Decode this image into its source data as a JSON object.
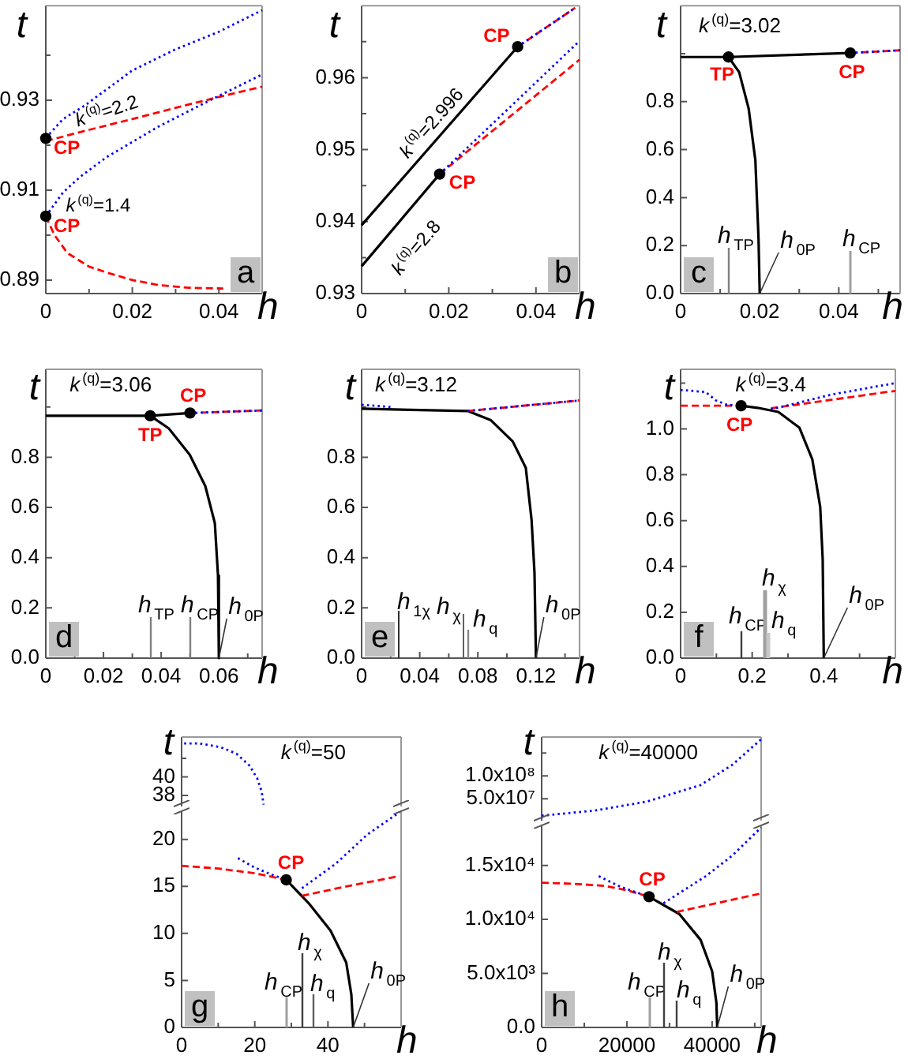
{
  "chart_data": [
    {
      "type": "line",
      "title": "a",
      "xlabel": "h",
      "ylabel": "t",
      "xlim": [
        0,
        0.05
      ],
      "ylim": [
        0.887,
        0.951
      ],
      "xticks": [
        0,
        {
          "value": 0.01,
          "label": null
        },
        0.02,
        {
          "value": 0.03,
          "label": null
        },
        0.04
      ],
      "yticks": [
        0.89,
        {
          "value": 0.9,
          "label": null
        },
        0.91,
        {
          "value": 0.92,
          "label": null
        },
        0.93,
        {
          "value": 0.94,
          "label": null
        }
      ],
      "series": [
        {
          "type": "line",
          "color": "#0000ff",
          "line_style": "dotted",
          "marker": "none",
          "x": [
            0,
            0.004,
            0.009,
            0.02,
            0.03,
            0.04,
            0.05
          ],
          "values": [
            0.9216,
            0.9258,
            0.9288,
            0.9366,
            0.9413,
            0.9452,
            0.95
          ]
        },
        {
          "type": "line",
          "color": "#ff0000",
          "line_style": "dashed",
          "marker": "none",
          "x": [
            0,
            0.01,
            0.02,
            0.03,
            0.04,
            0.05
          ],
          "values": [
            0.9209,
            0.9234,
            0.9258,
            0.9283,
            0.9307,
            0.933
          ]
        },
        {
          "type": "line",
          "color": "#0000ff",
          "line_style": "dotted",
          "marker": "none",
          "x": [
            0,
            0.004,
            0.008,
            0.014,
            0.026,
            0.038,
            0.05
          ],
          "values": [
            0.9042,
            0.9095,
            0.913,
            0.9173,
            0.9241,
            0.93,
            0.9357
          ]
        },
        {
          "type": "line",
          "color": "#ff0000",
          "line_style": "dashed",
          "marker": "none",
          "x": [
            0,
            0.002,
            0.005,
            0.01,
            0.014,
            0.02,
            0.026,
            0.033,
            0.041
          ],
          "values": [
            0.9042,
            0.9,
            0.896,
            0.893,
            0.8917,
            0.89,
            0.8889,
            0.8883,
            0.8881
          ]
        },
        {
          "type": "scatter",
          "color": "#000000",
          "marker": "circle",
          "x": [
            0,
            0
          ],
          "values": [
            0.9215,
            0.9042
          ]
        }
      ],
      "annotations": [
        "k$^{(q)}$=2.2",
        "k$^{(q)}$=1.4",
        {
          "text": "CP",
          "x": 0,
          "y": 0.9215
        },
        {
          "text": "CP",
          "x": 0,
          "y": 0.9042
        }
      ]
    },
    {
      "type": "line",
      "title": "b",
      "xlabel": "h",
      "ylabel": "t",
      "xlim": [
        0,
        0.05
      ],
      "ylim": [
        0.93,
        0.97
      ],
      "xticks": [
        0,
        {
          "value": 0.01,
          "label": null
        },
        0.02,
        {
          "value": 0.03,
          "label": null
        },
        0.04
      ],
      "yticks": [
        0.93,
        {
          "value": 0.935,
          "label": null
        },
        0.94,
        {
          "value": 0.945,
          "label": null
        },
        0.95,
        {
          "value": 0.955,
          "label": null
        },
        0.96,
        {
          "value": 0.965,
          "label": null
        }
      ],
      "series": [
        {
          "type": "line",
          "color": "#000000",
          "line_style": "solid",
          "marker": "none",
          "x": [
            0,
            0.0358
          ],
          "values": [
            0.9395,
            0.9643
          ]
        },
        {
          "type": "line",
          "color": "#0000ff",
          "line_style": "dotted",
          "marker": "none",
          "x": [
            0.0358,
            0.049
          ],
          "values": [
            0.9643,
            0.9697
          ]
        },
        {
          "type": "line",
          "color": "#ff0000",
          "line_style": "dashed",
          "marker": "none",
          "x": [
            0.0358,
            0.049
          ],
          "values": [
            0.9643,
            0.9697
          ]
        },
        {
          "type": "line",
          "color": "#000000",
          "line_style": "solid",
          "marker": "none",
          "x": [
            0,
            0.0179
          ],
          "values": [
            0.9338,
            0.9466
          ]
        },
        {
          "type": "line",
          "color": "#0000ff",
          "line_style": "dotted",
          "marker": "none",
          "x": [
            0.0179,
            0.05
          ],
          "values": [
            0.9466,
            0.9651
          ]
        },
        {
          "type": "line",
          "color": "#ff0000",
          "line_style": "dashed",
          "marker": "none",
          "x": [
            0.0179,
            0.05
          ],
          "values": [
            0.9466,
            0.9625
          ]
        },
        {
          "type": "scatter",
          "color": "#000000",
          "marker": "circle",
          "x": [
            0.0358,
            0.0179
          ],
          "values": [
            0.9643,
            0.9466
          ]
        }
      ],
      "annotations": [
        "k$^{(q)}$=2.996",
        "k$^{(q)}$=2.8",
        {
          "text": "CP",
          "x": 0.0358,
          "y": 0.9643
        },
        {
          "text": "CP",
          "x": 0.0179,
          "y": 0.9466
        }
      ]
    },
    {
      "type": "line",
      "title": "c",
      "subtitle": "k$^{(q)}$=3.02",
      "xlabel": "h",
      "ylabel": "t",
      "xlim": [
        0,
        0.0555
      ],
      "ylim": [
        0,
        1.2
      ],
      "xticks": [
        0,
        {
          "value": 0.01,
          "label": null
        },
        0.02,
        {
          "value": 0.03,
          "label": null
        },
        0.04,
        {
          "value": 0.05,
          "label": null
        }
      ],
      "yticks": [
        {
          "value": 0,
          "label": "0.0"
        },
        0.2,
        0.4,
        0.6,
        0.8,
        {
          "value": 1,
          "label": null
        }
      ],
      "series": [
        {
          "type": "line",
          "color": "#000000",
          "line_style": "solid",
          "marker": "none",
          "x": [
            0,
            0.0121,
            0.0429
          ],
          "values": [
            0.986,
            0.986,
            1.003
          ]
        },
        {
          "type": "line",
          "color": "#000000",
          "line_style": "solid",
          "marker": "none",
          "x": [
            0.0121,
            0.0148,
            0.0172,
            0.0189,
            0.0197,
            0.02
          ],
          "values": [
            0.986,
            0.923,
            0.772,
            0.556,
            0.231,
            0
          ]
        },
        {
          "type": "line",
          "color": "#0000ff",
          "line_style": "dotted",
          "marker": "none",
          "x": [
            0.0429,
            0.0555
          ],
          "values": [
            1.003,
            1.014
          ]
        },
        {
          "type": "line",
          "color": "#ff0000",
          "line_style": "dashed",
          "marker": "none",
          "x": [
            0.0429,
            0.0555
          ],
          "values": [
            1.003,
            1.014
          ]
        },
        {
          "type": "scatter",
          "color": "#000000",
          "marker": "circle",
          "x": [
            0.0121,
            0.0429
          ],
          "values": [
            0.986,
            1.003
          ]
        }
      ],
      "ref_lines": [
        {
          "axis": "x",
          "value": 0.0121,
          "label": "h$_{TP}$",
          "color": "#808080"
        },
        {
          "axis": "x",
          "value": 0.0429,
          "label": "h$_{CP}$",
          "color": "#a0a0a0"
        }
      ],
      "annotations": [
        {
          "text": "TP",
          "x": 0.0121,
          "y": 0.986
        },
        {
          "text": "CP",
          "x": 0.0429,
          "y": 1.003
        },
        {
          "text": "h$_{0P}$",
          "x": 0.02,
          "y": 0
        }
      ]
    },
    {
      "type": "line",
      "title": "d",
      "subtitle": "k$^{(q)}$=3.06",
      "xlabel": "h",
      "ylabel": "t",
      "xlim": [
        0,
        0.075
      ],
      "ylim": [
        0,
        1.15
      ],
      "xticks": [
        0,
        {
          "value": 0.01,
          "label": null
        },
        0.02,
        {
          "value": 0.03,
          "label": null
        },
        0.04,
        {
          "value": 0.05,
          "label": null
        },
        0.06,
        {
          "value": 0.07,
          "label": null
        }
      ],
      "yticks": [
        {
          "value": 0,
          "label": "0.0"
        },
        0.2,
        0.4,
        0.6,
        0.8,
        {
          "value": 1,
          "label": null
        }
      ],
      "series": [
        {
          "type": "line",
          "color": "#000000",
          "line_style": "solid",
          "marker": "none",
          "x": [
            0,
            0.0362,
            0.05
          ],
          "values": [
            0.965,
            0.965,
            0.976
          ]
        },
        {
          "type": "line",
          "color": "#000000",
          "line_style": "solid",
          "marker": "none",
          "x": [
            0.0362,
            0.0426,
            0.0499,
            0.0553,
            0.0586,
            0.0597,
            0.06
          ],
          "values": [
            0.965,
            0.915,
            0.81,
            0.685,
            0.538,
            0.329,
            0
          ]
        },
        {
          "type": "line",
          "color": "#0000ff",
          "line_style": "dotted",
          "marker": "none",
          "x": [
            0.05,
            0.075
          ],
          "values": [
            0.976,
            0.986
          ]
        },
        {
          "type": "line",
          "color": "#ff0000",
          "line_style": "dashed",
          "marker": "none",
          "x": [
            0.05,
            0.075
          ],
          "values": [
            0.976,
            0.986
          ]
        },
        {
          "type": "scatter",
          "color": "#000000",
          "marker": "circle",
          "x": [
            0.0362,
            0.05
          ],
          "values": [
            0.965,
            0.976
          ]
        }
      ],
      "ref_lines": [
        {
          "axis": "x",
          "value": 0.0362,
          "label": "h$_{TP}$",
          "color": "#808080"
        },
        {
          "axis": "x",
          "value": 0.05,
          "label": "h$_{CP}$",
          "color": "#808080"
        }
      ],
      "annotations": [
        {
          "text": "CP",
          "x": 0.05,
          "y": 0.976
        },
        {
          "text": "TP",
          "x": 0.0362,
          "y": 0.965
        },
        {
          "text": "h$_{0P}$",
          "x": 0.06,
          "y": 0
        }
      ]
    },
    {
      "type": "line",
      "title": "e",
      "subtitle": "k$^{(q)}$=3.12",
      "xlabel": "h",
      "ylabel": "t",
      "xlim": [
        0,
        0.15
      ],
      "ylim": [
        0,
        1.15
      ],
      "xticks": [
        0,
        {
          "value": 0.02,
          "label": null
        },
        0.04,
        {
          "value": 0.06,
          "label": null
        },
        0.08,
        {
          "value": 0.1,
          "label": null
        },
        0.12,
        {
          "value": 0.14,
          "label": null
        }
      ],
      "yticks": [
        {
          "value": 0,
          "label": "0.0"
        },
        0.2,
        0.4,
        0.6,
        0.8,
        {
          "value": 1,
          "label": null
        }
      ],
      "series": [
        {
          "type": "line",
          "color": "#0000ff",
          "line_style": "dotted",
          "marker": "none",
          "x": [
            0,
            0.022
          ],
          "values": [
            1.009,
            0.999
          ]
        },
        {
          "type": "line",
          "color": "#000000",
          "line_style": "solid",
          "marker": "none",
          "x": [
            0,
            0.073,
            0.089,
            0.104,
            0.113,
            0.117,
            0.119,
            0.12
          ],
          "values": [
            0.993,
            0.984,
            0.947,
            0.863,
            0.758,
            0.549,
            0.339,
            0
          ]
        },
        {
          "type": "line",
          "color": "#0000ff",
          "line_style": "dotted",
          "marker": "none",
          "x": [
            0.073,
            0.15
          ],
          "values": [
            0.984,
            1.026
          ]
        },
        {
          "type": "line",
          "color": "#ff0000",
          "line_style": "dashed",
          "marker": "none",
          "x": [
            0.073,
            0.15
          ],
          "values": [
            0.984,
            1.026
          ]
        }
      ],
      "ref_lines": [
        {
          "axis": "x",
          "value": 0.025,
          "label": "h$_{1χ}$",
          "color": "#303030"
        },
        {
          "axis": "x",
          "value": 0.07,
          "label": "h$_{χ}$",
          "color": "#606060"
        },
        {
          "axis": "x",
          "value": 0.073,
          "label": "h$_{q}$",
          "color": "#888888"
        }
      ],
      "annotations": [
        {
          "text": "h$_{0P}$",
          "x": 0.12,
          "y": 0
        }
      ]
    },
    {
      "type": "line",
      "title": "f",
      "subtitle": "k$^{(q)}$=3.4",
      "xlabel": "h",
      "ylabel": "t",
      "xlim": [
        0,
        0.6
      ],
      "ylim": [
        0,
        1.26
      ],
      "xticks": [
        0,
        {
          "value": 0.1,
          "label": null
        },
        0.2,
        {
          "value": 0.3,
          "label": null
        },
        0.4,
        {
          "value": 0.5,
          "label": null
        }
      ],
      "yticks": [
        {
          "value": 0,
          "label": "0.0"
        },
        0.2,
        0.4,
        0.6,
        0.8,
        {
          "value": 1,
          "label": "1.0"
        },
        {
          "value": 1.2,
          "label": null
        }
      ],
      "series": [
        {
          "type": "line",
          "color": "#000000",
          "line_style": "solid",
          "marker": "none",
          "x": [
            0.169,
            0.215,
            0.273,
            0.332,
            0.368,
            0.39,
            0.397,
            0.4
          ],
          "values": [
            1.101,
            1.092,
            1.074,
            1.005,
            0.867,
            0.66,
            0.43,
            0
          ]
        },
        {
          "type": "line",
          "color": "#ff0000",
          "line_style": "dashed",
          "marker": "none",
          "x": [
            0,
            0.169,
            0.21,
            0.252,
            0.6
          ],
          "values": [
            1.101,
            1.101,
            null,
            1.09,
            1.166
          ]
        },
        {
          "type": "line",
          "color": "#0000ff",
          "line_style": "dotted",
          "marker": "none",
          "x": [
            0,
            0.07,
            0.099,
            0.128,
            0.169,
            0.21,
            0.252,
            0.42,
            0.6
          ],
          "values": [
            1.17,
            1.161,
            1.124,
            1.106,
            1.101,
            null,
            1.085,
            1.149,
            1.2
          ]
        },
        {
          "type": "scatter",
          "color": "#000000",
          "marker": "circle",
          "x": [
            0.169
          ],
          "values": [
            1.101
          ]
        }
      ],
      "ref_lines": [
        {
          "axis": "x",
          "value": 0.169,
          "label": "h$_{CP}$",
          "color": "#404040"
        },
        {
          "axis": "x",
          "value": 0.236,
          "label": "h$_{χ}$",
          "color": "#a0a0a0"
        },
        {
          "axis": "x",
          "value": 0.244,
          "label": "h$_{q}$",
          "color": "#c8c8c8"
        }
      ],
      "annotations": [
        {
          "text": "CP",
          "x": 0.169,
          "y": 1.101
        },
        {
          "text": "h$_{0P}$",
          "x": 0.4,
          "y": 0
        }
      ]
    },
    {
      "type": "line",
      "subtitle": "k$^{(q)}$=50",
      "ylabel": "t",
      "tick_labels": "y",
      "xlim": [
        0,
        60
      ],
      "ylim": [
        36.8,
        44.3
      ],
      "yticks": [
        38,
        40,
        {
          "value": 42,
          "label": null
        }
      ],
      "series": [
        {
          "type": "line",
          "color": "#0000ff",
          "line_style": "dotted",
          "marker": "none",
          "x": [
            0.7,
            5,
            10.7,
            15,
            18.6,
            20.7,
            21.9,
            22.4
          ],
          "values": [
            43.6,
            43.6,
            43.2,
            42.5,
            41.2,
            39.8,
            38.4,
            37
          ]
        }
      ]
    },
    {
      "type": "line",
      "title": "g",
      "xlabel": "h",
      "xlim": [
        0,
        60
      ],
      "ylim": [
        0,
        23
      ],
      "xticks": [
        0,
        {
          "value": 10,
          "label": null
        },
        20,
        {
          "value": 30,
          "label": null
        },
        40,
        {
          "value": 50,
          "label": null
        }
      ],
      "yticks": [
        0,
        5,
        10,
        15,
        20
      ],
      "series": [
        {
          "type": "line",
          "color": "#000000",
          "line_style": "solid",
          "marker": "none",
          "x": [
            28.6,
            35,
            40.7,
            45,
            46.4,
            46.9
          ],
          "values": [
            15.7,
            13.1,
            10.3,
            6.9,
            3.5,
            0
          ]
        },
        {
          "type": "line",
          "color": "#ff0000",
          "line_style": "dashed",
          "marker": "none",
          "x": [
            0,
            10,
            20,
            28.6,
            31,
            32.9,
            45,
            59.6
          ],
          "values": [
            17.2,
            16.9,
            16.4,
            15.7,
            null,
            14,
            15,
            16.1
          ]
        },
        {
          "type": "line",
          "color": "#0000ff",
          "line_style": "dotted",
          "marker": "none",
          "x": [
            15.4,
            20,
            25,
            28.6,
            31,
            32.9,
            42.1,
            50.7,
            59.6
          ],
          "values": [
            18,
            17,
            16.2,
            15.7,
            null,
            14.8,
            17.4,
            20.5,
            22.9
          ]
        },
        {
          "type": "scatter",
          "color": "#000000",
          "marker": "circle",
          "x": [
            28.6
          ],
          "values": [
            15.7
          ]
        }
      ],
      "ref_lines": [
        {
          "axis": "x",
          "value": 28.6,
          "label": "h$_{CP}$",
          "color": "#a0a0a0"
        },
        {
          "axis": "x",
          "value": 32.6,
          "label": "h$_{χ}$",
          "color": "#404040"
        },
        {
          "axis": "x",
          "value": 35.7,
          "label": "h$_{q}$",
          "color": "#606060"
        }
      ],
      "annotations": [
        {
          "text": "CP",
          "x": 28.6,
          "y": 15.7
        },
        {
          "text": "h$_{0P}$",
          "x": 46.9,
          "y": 0
        }
      ]
    },
    {
      "type": "line",
      "subtitle": "k$^{(q)}$=40000",
      "ylabel": "t",
      "tick_labels": "y",
      "xlim": [
        0,
        51500
      ],
      "ylim": [
        2000000,
        185000000
      ],
      "yticks": [
        {
          "value": 50000000,
          "label": "5.0x10⁷"
        },
        {
          "value": 100000000,
          "label": "1.0x10⁸"
        },
        {
          "value": 150000000,
          "label": null
        }
      ],
      "series": [
        {
          "type": "line",
          "color": "#0000ff",
          "line_style": "dotted",
          "marker": "none",
          "x": [
            0,
            12400,
            24800,
            37300,
            44700,
            51500
          ],
          "values": [
            13000000,
            24000000,
            44000000,
            80000000,
            124000000,
            180000000
          ]
        }
      ]
    },
    {
      "type": "line",
      "title": "h",
      "xlabel": "h",
      "xlim": [
        0,
        51500
      ],
      "ylim": [
        0,
        18700
      ],
      "xticks": [
        0,
        {
          "value": 10000,
          "label": null
        },
        20000,
        {
          "value": 30000,
          "label": null
        },
        40000,
        {
          "value": 50000,
          "label": null
        }
      ],
      "yticks": [
        {
          "value": 0,
          "label": "0.0"
        },
        {
          "value": 5000,
          "label": "5.0x10³"
        },
        {
          "value": 10000,
          "label": "1.0x10⁴"
        },
        {
          "value": 15000,
          "label": "1.5x10⁴"
        }
      ],
      "series": [
        {
          "type": "line",
          "color": "#000000",
          "line_style": "solid",
          "marker": "none",
          "x": [
            25200,
            32300,
            37300,
            40000,
            41000,
            41200
          ],
          "values": [
            12100,
            10500,
            8100,
            5200,
            2300,
            0
          ]
        },
        {
          "type": "line",
          "color": "#ff0000",
          "line_style": "dashed",
          "marker": "none",
          "x": [
            0,
            7500,
            14900,
            20000,
            25200,
            28000,
            31700,
            51500
          ],
          "values": [
            13400,
            13300,
            13100,
            12700,
            12100,
            null,
            10700,
            12400
          ]
        },
        {
          "type": "line",
          "color": "#0000ff",
          "line_style": "dotted",
          "marker": "none",
          "x": [
            13400,
            18600,
            25200,
            27000,
            28600,
            38500,
            44700,
            51500
          ],
          "values": [
            14000,
            13000,
            12100,
            null,
            11500,
            14000,
            15900,
            18500
          ]
        },
        {
          "type": "scatter",
          "color": "#000000",
          "marker": "circle",
          "x": [
            25200
          ],
          "values": [
            12100
          ]
        }
      ],
      "ref_lines": [
        {
          "axis": "x",
          "value": 25200,
          "label": "h$_{CP}$",
          "color": "#a0a0a0"
        },
        {
          "axis": "x",
          "value": 28700,
          "label": "h$_{χ}$",
          "color": "#404040"
        },
        {
          "axis": "x",
          "value": 31400,
          "label": "h$_{q}$",
          "color": "#404040"
        }
      ],
      "annotations": [
        {
          "text": "CP",
          "x": 25200,
          "y": 12100
        },
        {
          "text": "h$_{0P}$",
          "x": 41200,
          "y": 0
        }
      ]
    }
  ]
}
